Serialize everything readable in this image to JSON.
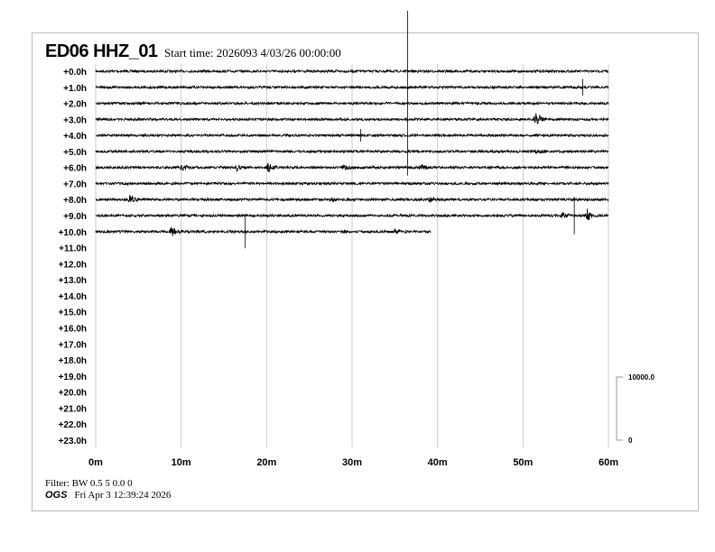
{
  "header": {
    "station": "ED06 HHZ_01",
    "start_time": "Start time: 2026093  4/03/26 00:00:00"
  },
  "footer": {
    "filter": "Filter: BW 0.5 5 0.0 0",
    "org": "OGS",
    "timestamp": "Fri Apr  3 12:39:24 2026"
  },
  "chart_data": {
    "type": "line",
    "row_labels": [
      "+0.0h",
      "+1.0h",
      "+2.0h",
      "+3.0h",
      "+4.0h",
      "+5.0h",
      "+6.0h",
      "+7.0h",
      "+8.0h",
      "+9.0h",
      "+10.0h",
      "+11.0h",
      "+12.0h",
      "+13.0h",
      "+14.0h",
      "+15.0h",
      "+16.0h",
      "+17.0h",
      "+18.0h",
      "+19.0h",
      "+20.0h",
      "+21.0h",
      "+22.0h",
      "+23.0h"
    ],
    "x_ticks": [
      "0m",
      "10m",
      "20m",
      "30m",
      "40m",
      "50m",
      "60m"
    ],
    "x_range_minutes": [
      0,
      60
    ],
    "grid": "vertical every 10m",
    "data_end": {
      "hour": 10,
      "minute": 39.2
    },
    "scale_bar": {
      "top_label": "10000.0",
      "bottom_label": "0"
    },
    "trace_color": "#000000",
    "grid_color": "#cccccc",
    "events": [
      {
        "hour": 0,
        "minute": 36.5,
        "amplitude": 5,
        "type": "spike"
      },
      {
        "hour": 1,
        "minute": 57,
        "amplitude": 0.4,
        "type": "spike"
      },
      {
        "hour": 3,
        "minute": 51.5,
        "amplitude": 0.6,
        "type": "quake"
      },
      {
        "hour": 4,
        "minute": 31,
        "amplitude": 0.3,
        "type": "spike"
      },
      {
        "hour": 5,
        "minute": 51.5,
        "amplitude": 0.2,
        "type": "quake"
      },
      {
        "hour": 6,
        "minute": 10,
        "amplitude": 0.25,
        "type": "quake"
      },
      {
        "hour": 6,
        "minute": 16.5,
        "amplitude": 0.2,
        "type": "quake"
      },
      {
        "hour": 6,
        "minute": 20,
        "amplitude": 0.45,
        "type": "quake"
      },
      {
        "hour": 6,
        "minute": 29,
        "amplitude": 0.2,
        "type": "quake"
      },
      {
        "hour": 6,
        "minute": 38,
        "amplitude": 0.2,
        "type": "quake"
      },
      {
        "hour": 8,
        "minute": 4,
        "amplitude": 0.35,
        "type": "quake"
      },
      {
        "hour": 8,
        "minute": 27.5,
        "amplitude": 0.15,
        "type": "quake"
      },
      {
        "hour": 8,
        "minute": 39,
        "amplitude": 0.2,
        "type": "quake"
      },
      {
        "hour": 9,
        "minute": 54.5,
        "amplitude": 0.25,
        "type": "quake"
      },
      {
        "hour": 9,
        "minute": 56,
        "amplitude": 0.9,
        "type": "spike"
      },
      {
        "hour": 9,
        "minute": 57.5,
        "amplitude": 0.4,
        "type": "quake"
      },
      {
        "hour": 10,
        "minute": 8.8,
        "amplitude": 0.5,
        "type": "quake"
      },
      {
        "hour": 10,
        "minute": 17.5,
        "amplitude": 0.8,
        "type": "spike"
      },
      {
        "hour": 10,
        "minute": 29,
        "amplitude": 0.15,
        "type": "quake"
      },
      {
        "hour": 10,
        "minute": 35,
        "amplitude": 0.2,
        "type": "quake"
      }
    ]
  }
}
